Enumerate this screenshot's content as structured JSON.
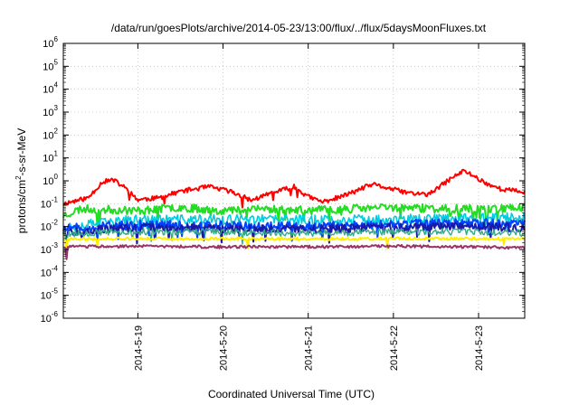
{
  "chart_data": {
    "type": "line",
    "title": "/data/run/goesPlots/archive/2014-05-23/13:00/flux/../flux/5daysMoonFluxes.txt",
    "xlabel": "Coordinated Universal Time (UTC)",
    "ylabel": {
      "pre": "protons/cm",
      "sup": "2",
      "post": "-s-sr-MeV"
    },
    "yscale": "log",
    "ylim_exp": [
      -6,
      6
    ],
    "y_ticks": [
      {
        "base": "10",
        "exp": "-6"
      },
      {
        "base": "10",
        "exp": "-5"
      },
      {
        "base": "10",
        "exp": "-4"
      },
      {
        "base": "10",
        "exp": "-3"
      },
      {
        "base": "10",
        "exp": "-2"
      },
      {
        "base": "10",
        "exp": "-1"
      },
      {
        "base": "10",
        "exp": "0"
      },
      {
        "base": "10",
        "exp": "1"
      },
      {
        "base": "10",
        "exp": "2"
      },
      {
        "base": "10",
        "exp": "3"
      },
      {
        "base": "10",
        "exp": "4"
      },
      {
        "base": "10",
        "exp": "5"
      },
      {
        "base": "10",
        "exp": "6"
      }
    ],
    "x_tick_labels": [
      "2014-5-19",
      "2014-5-20",
      "2014-5-21",
      "2014-5-22",
      "2014-5-23"
    ],
    "xlim": [
      "2014-05-18 03:00",
      "2014-05-23 13:00"
    ],
    "x_tick_dates": [
      "2014-05-19 00:00",
      "2014-05-20 00:00",
      "2014-05-21 00:00",
      "2014-05-22 00:00",
      "2014-05-23 00:00"
    ],
    "series": [
      {
        "color": "#ff0000",
        "width": 2,
        "seed": 11,
        "noise": 0.1,
        "spike_prob": 0.02,
        "points": [
          [
            "2014-05-18 03:00",
            0.1
          ],
          [
            "2014-05-18 10:00",
            0.18
          ],
          [
            "2014-05-18 14:00",
            0.9
          ],
          [
            "2014-05-18 17:00",
            1.1
          ],
          [
            "2014-05-18 20:00",
            0.55
          ],
          [
            "2014-05-19 00:00",
            0.15
          ],
          [
            "2014-05-19 06:00",
            0.18
          ],
          [
            "2014-05-19 12:00",
            0.35
          ],
          [
            "2014-05-19 20:00",
            0.55
          ],
          [
            "2014-05-20 02:00",
            0.35
          ],
          [
            "2014-05-20 08:00",
            0.14
          ],
          [
            "2014-05-20 14:00",
            0.3
          ],
          [
            "2014-05-20 20:00",
            0.55
          ],
          [
            "2014-05-21 00:00",
            0.2
          ],
          [
            "2014-05-21 04:00",
            0.12
          ],
          [
            "2014-05-21 10:00",
            0.22
          ],
          [
            "2014-05-21 18:00",
            0.7
          ],
          [
            "2014-05-21 22:00",
            0.5
          ],
          [
            "2014-05-22 04:00",
            0.3
          ],
          [
            "2014-05-22 10:00",
            0.25
          ],
          [
            "2014-05-22 16:00",
            1.2
          ],
          [
            "2014-05-22 20:00",
            2.8
          ],
          [
            "2014-05-23 02:00",
            0.8
          ],
          [
            "2014-05-23 06:00",
            0.45
          ],
          [
            "2014-05-23 13:00",
            0.32
          ]
        ]
      },
      {
        "color": "#22dd22",
        "width": 2,
        "seed": 23,
        "noise": 0.18,
        "spike_prob": 0.03,
        "points": [
          [
            "2014-05-18 03:00",
            0.03
          ],
          [
            "2014-05-18 08:00",
            0.06
          ],
          [
            "2014-05-19 00:00",
            0.05
          ],
          [
            "2014-05-19 12:00",
            0.07
          ],
          [
            "2014-05-20 00:00",
            0.05
          ],
          [
            "2014-05-20 12:00",
            0.06
          ],
          [
            "2014-05-21 00:00",
            0.05
          ],
          [
            "2014-05-21 12:00",
            0.06
          ],
          [
            "2014-05-22 00:00",
            0.07
          ],
          [
            "2014-05-22 12:00",
            0.06
          ],
          [
            "2014-05-23 00:00",
            0.06
          ],
          [
            "2014-05-23 13:00",
            0.07
          ]
        ]
      },
      {
        "color": "#00ccdd",
        "width": 1.6,
        "seed": 37,
        "noise": 0.22,
        "spike_prob": 0.03,
        "points": [
          [
            "2014-05-18 03:00",
            0.01
          ],
          [
            "2014-05-19 00:00",
            0.02
          ],
          [
            "2014-05-20 00:00",
            0.02
          ],
          [
            "2014-05-21 00:00",
            0.02
          ],
          [
            "2014-05-22 00:00",
            0.02
          ],
          [
            "2014-05-23 00:00",
            0.025
          ],
          [
            "2014-05-23 13:00",
            0.025
          ]
        ]
      },
      {
        "color": "#0044ff",
        "width": 2,
        "seed": 51,
        "noise": 0.2,
        "spike_prob": 0.04,
        "points": [
          [
            "2014-05-18 03:00",
            0.008
          ],
          [
            "2014-05-19 00:00",
            0.012
          ],
          [
            "2014-05-20 00:00",
            0.011
          ],
          [
            "2014-05-21 00:00",
            0.01
          ],
          [
            "2014-05-22 00:00",
            0.013
          ],
          [
            "2014-05-23 00:00",
            0.014
          ],
          [
            "2014-05-23 13:00",
            0.012
          ]
        ]
      },
      {
        "color": "#1a1aa8",
        "width": 2,
        "seed": 67,
        "noise": 0.18,
        "spike_prob": 0.03,
        "points": [
          [
            "2014-05-18 03:00",
            0.006
          ],
          [
            "2014-05-19 00:00",
            0.009
          ],
          [
            "2014-05-20 00:00",
            0.008
          ],
          [
            "2014-05-21 00:00",
            0.008
          ],
          [
            "2014-05-22 00:00",
            0.009
          ],
          [
            "2014-05-23 00:00",
            0.01
          ],
          [
            "2014-05-23 13:00",
            0.009
          ]
        ]
      },
      {
        "color": "#33aa88",
        "width": 1.4,
        "seed": 79,
        "noise": 0.15,
        "spike_prob": 0.02,
        "points": [
          [
            "2014-05-18 03:00",
            0.005
          ],
          [
            "2014-05-19 00:00",
            0.006
          ],
          [
            "2014-05-20 00:00",
            0.006
          ],
          [
            "2014-05-21 00:00",
            0.005
          ],
          [
            "2014-05-22 00:00",
            0.006
          ],
          [
            "2014-05-23 00:00",
            0.006
          ],
          [
            "2014-05-23 13:00",
            0.005
          ]
        ]
      },
      {
        "color": "#ffee00",
        "width": 2,
        "seed": 91,
        "noise": 0.06,
        "spike_prob": 0.01,
        "points": [
          [
            "2014-05-18 03:00",
            0.0028
          ],
          [
            "2014-05-19 00:00",
            0.003
          ],
          [
            "2014-05-20 00:00",
            0.0029
          ],
          [
            "2014-05-21 00:00",
            0.0028
          ],
          [
            "2014-05-22 00:00",
            0.003
          ],
          [
            "2014-05-23 00:00",
            0.0029
          ],
          [
            "2014-05-23 13:00",
            0.0029
          ]
        ]
      },
      {
        "color": "#993366",
        "width": 2,
        "seed": 103,
        "noise": 0.06,
        "spike_prob": 0.015,
        "points": [
          [
            "2014-05-18 03:00",
            0.0013
          ],
          [
            "2014-05-19 00:00",
            0.0014
          ],
          [
            "2014-05-20 00:00",
            0.0013
          ],
          [
            "2014-05-21 00:00",
            0.0013
          ],
          [
            "2014-05-22 00:00",
            0.0014
          ],
          [
            "2014-05-23 00:00",
            0.0013
          ],
          [
            "2014-05-23 13:00",
            0.0012
          ]
        ]
      }
    ]
  }
}
